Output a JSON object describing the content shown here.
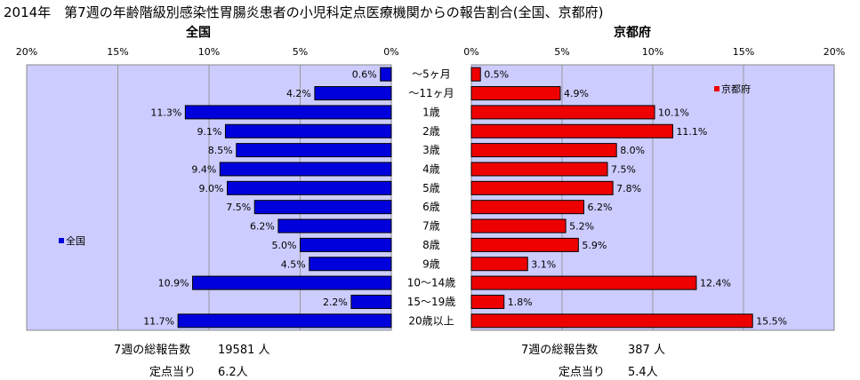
{
  "title": "2014年　第7週の年齢階級別感染性胃腸炎患者の小児科定点医療機関からの報告割合(全国、京都府)",
  "chart_data": [
    {
      "type": "bar",
      "orientation": "horizontal",
      "direction": "reversed",
      "title": "全国",
      "categories": [
        "～5ヶ月",
        "～11ヶ月",
        "1歳",
        "2歳",
        "3歳",
        "4歳",
        "5歳",
        "6歳",
        "7歳",
        "8歳",
        "9歳",
        "10～14歳",
        "15～19歳",
        "20歳以上"
      ],
      "series": [
        {
          "name": "全国",
          "color": "#0000dd",
          "values": [
            0.6,
            4.2,
            11.3,
            9.1,
            8.5,
            9.4,
            9.0,
            7.5,
            6.2,
            5.0,
            4.5,
            10.9,
            2.2,
            11.7
          ]
        }
      ],
      "value_labels": [
        "0.6%",
        "4.2%",
        "11.3%",
        "9.1%",
        "8.5%",
        "9.4%",
        "9.0%",
        "7.5%",
        "6.2%",
        "5.0%",
        "4.5%",
        "10.9%",
        "2.2%",
        "11.7%"
      ],
      "xlim": [
        0,
        20
      ],
      "ticks": [
        "20%",
        "15%",
        "10%",
        "5%",
        "0%"
      ],
      "legend": "left",
      "grid": true,
      "plot_background": "#ccccff"
    },
    {
      "type": "bar",
      "orientation": "horizontal",
      "title": "京都府",
      "categories": [
        "～5ヶ月",
        "～11ヶ月",
        "1歳",
        "2歳",
        "3歳",
        "4歳",
        "5歳",
        "6歳",
        "7歳",
        "8歳",
        "9歳",
        "10～14歳",
        "15～19歳",
        "20歳以上"
      ],
      "series": [
        {
          "name": "京都府",
          "color": "#ee0000",
          "values": [
            0.5,
            4.9,
            10.1,
            11.1,
            8.0,
            7.5,
            7.8,
            6.2,
            5.2,
            5.9,
            3.1,
            12.4,
            1.8,
            15.5
          ]
        }
      ],
      "value_labels": [
        "0.5%",
        "4.9%",
        "10.1%",
        "11.1%",
        "8.0%",
        "7.5%",
        "7.8%",
        "6.2%",
        "5.2%",
        "5.9%",
        "3.1%",
        "12.4%",
        "1.8%",
        "15.5%"
      ],
      "xlim": [
        0,
        20
      ],
      "ticks": [
        "0%",
        "5%",
        "10%",
        "15%",
        "20%"
      ],
      "legend": "top-right",
      "grid": true,
      "plot_background": "#ccccff"
    }
  ],
  "footer": {
    "national_total_label": "7週の総報告数",
    "national_total_value": "19581 人",
    "national_per_label": "定点当り",
    "national_per_value": "6.2人",
    "kyoto_total_label": "7週の総報告数",
    "kyoto_total_value": "387 人",
    "kyoto_per_label": "定点当り",
    "kyoto_per_value": "5.4人"
  }
}
